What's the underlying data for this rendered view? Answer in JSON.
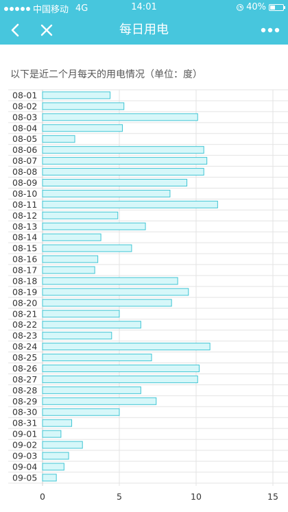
{
  "status_bar": {
    "carrier": "中国移动",
    "network": "4G",
    "time": "14:01",
    "battery": "40%",
    "battery_level": 0.4
  },
  "nav": {
    "title": "每日用电",
    "back_icon": "chevron-left-icon",
    "close_icon": "close-icon",
    "more_icon": "more-dots-icon"
  },
  "description": "以下是近二个月每天的用电情况（单位：度）",
  "colors": {
    "header": "#47c6dd",
    "bar_fill": "#d6f7f9",
    "bar_stroke": "#3fc4d3",
    "grid": "#e3e3e3"
  },
  "chart_data": {
    "type": "bar",
    "orientation": "horizontal",
    "categories": [
      "08-01",
      "08-02",
      "08-03",
      "08-04",
      "08-05",
      "08-06",
      "08-07",
      "08-08",
      "08-09",
      "08-10",
      "08-11",
      "08-12",
      "08-13",
      "08-14",
      "08-15",
      "08-16",
      "08-17",
      "08-18",
      "08-19",
      "08-20",
      "08-21",
      "08-22",
      "08-23",
      "08-24",
      "08-25",
      "08-26",
      "08-27",
      "08-28",
      "08-29",
      "08-30",
      "08-31",
      "09-01",
      "09-02",
      "09-03",
      "09-04",
      "09-05"
    ],
    "values": [
      4.4,
      5.3,
      10.1,
      5.2,
      2.1,
      10.5,
      10.7,
      10.5,
      9.4,
      8.3,
      11.4,
      4.9,
      6.7,
      3.8,
      5.8,
      3.6,
      3.4,
      8.8,
      9.5,
      8.4,
      5.0,
      6.4,
      4.5,
      10.9,
      7.1,
      10.2,
      10.1,
      6.4,
      7.4,
      5.0,
      1.9,
      1.2,
      2.6,
      1.7,
      1.4,
      0.9
    ],
    "xlim": [
      0,
      15
    ],
    "x_ticks": [
      "0",
      "5",
      "10",
      "15"
    ],
    "grid": true
  }
}
